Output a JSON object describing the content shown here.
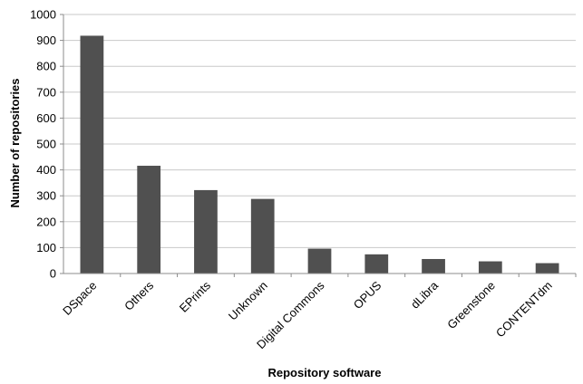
{
  "chart_data": {
    "type": "bar",
    "title": "",
    "xlabel": "Repository software",
    "ylabel": "Number of repositories",
    "categories": [
      "DSpace",
      "Others",
      "EPrints",
      "Unknown",
      "Digital Commons",
      "OPUS",
      "dLibra",
      "Greenstone",
      "CONTENTdm"
    ],
    "values": [
      918,
      416,
      322,
      288,
      96,
      74,
      56,
      47,
      40
    ],
    "ylim": [
      0,
      1000
    ],
    "yticks": [
      0,
      100,
      200,
      300,
      400,
      500,
      600,
      700,
      800,
      900,
      1000
    ],
    "grid": true,
    "legend": "none",
    "colors": {
      "bar": "#505050",
      "grid": "#c8c8c8",
      "axis": "#8c8c8c"
    }
  }
}
